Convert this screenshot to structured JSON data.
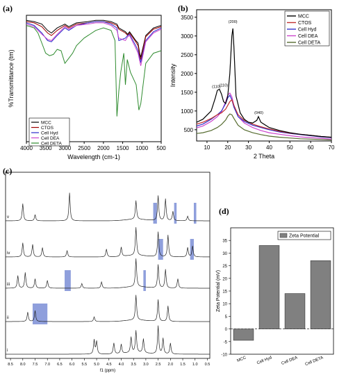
{
  "chart_data": [
    {
      "panel": "(a)",
      "type": "line",
      "xlabel": "Wavelength (cm-1)",
      "ylabel": "%Transmittance (tm)",
      "xlim": [
        4000,
        500
      ],
      "x_ticks": [
        4000,
        3500,
        3000,
        2500,
        2000,
        1500,
        1000,
        500
      ],
      "legend_position": "bottom-left",
      "series": [
        {
          "name": "MCC",
          "color": "#000000",
          "x": [
            4000,
            3800,
            3600,
            3450,
            3350,
            3200,
            3000,
            2900,
            2700,
            2400,
            2200,
            2000,
            1800,
            1650,
            1600,
            1430,
            1370,
            1320,
            1160,
            1100,
            1060,
            1030,
            900,
            700,
            500
          ],
          "y": [
            96,
            95,
            93,
            88,
            86,
            90,
            93,
            91,
            94,
            95,
            96,
            96,
            95,
            93,
            90,
            87,
            85,
            87,
            80,
            78,
            70,
            67,
            84,
            90,
            92
          ]
        },
        {
          "name": "CTOS",
          "color": "#a00000",
          "x": [
            4000,
            3800,
            3600,
            3450,
            3350,
            3200,
            3000,
            2900,
            2700,
            2400,
            2200,
            2000,
            1800,
            1650,
            1600,
            1430,
            1370,
            1320,
            1160,
            1100,
            1060,
            1030,
            900,
            700,
            500
          ],
          "y": [
            95,
            94,
            91,
            86,
            84,
            88,
            92,
            90,
            93,
            94,
            95,
            95,
            94,
            92,
            89,
            86,
            84,
            86,
            79,
            76,
            68,
            65,
            83,
            89,
            91
          ]
        },
        {
          "name": "Cell Hyd",
          "color": "#2a2acc",
          "x": [
            4000,
            3800,
            3600,
            3450,
            3350,
            3200,
            3000,
            2900,
            2700,
            2400,
            2200,
            2000,
            1800,
            1650,
            1600,
            1430,
            1370,
            1320,
            1160,
            1100,
            1060,
            1030,
            900,
            700,
            500
          ],
          "y": [
            94,
            92,
            86,
            80,
            79,
            84,
            90,
            88,
            92,
            94,
            95,
            95,
            93,
            90,
            80,
            82,
            84,
            85,
            76,
            72,
            66,
            63,
            80,
            87,
            90
          ]
        },
        {
          "name": "Cell DEA",
          "color": "#cc44cc",
          "x": [
            4000,
            3800,
            3600,
            3450,
            3350,
            3200,
            3000,
            2900,
            2700,
            2400,
            2200,
            2000,
            1800,
            1650,
            1600,
            1430,
            1370,
            1320,
            1160,
            1100,
            1060,
            1030,
            900,
            700,
            500
          ],
          "y": [
            93,
            91,
            85,
            81,
            80,
            85,
            91,
            89,
            92,
            93,
            94,
            94,
            92,
            88,
            82,
            80,
            83,
            84,
            74,
            70,
            64,
            60,
            79,
            86,
            89
          ]
        },
        {
          "name": "Cell DETA",
          "color": "#2e8b2e",
          "x": [
            4000,
            3800,
            3700,
            3600,
            3500,
            3400,
            3300,
            3200,
            3100,
            3000,
            2900,
            2800,
            2700,
            2500,
            2200,
            2000,
            1800,
            1700,
            1650,
            1600,
            1550,
            1470,
            1430,
            1380,
            1300,
            1150,
            1080,
            1030,
            950,
            900,
            700,
            500
          ],
          "y": [
            92,
            90,
            86,
            78,
            70,
            68,
            69,
            73,
            72,
            62,
            66,
            70,
            76,
            82,
            88,
            90,
            88,
            80,
            20,
            40,
            55,
            70,
            45,
            65,
            55,
            45,
            25,
            30,
            50,
            62,
            70,
            72
          ]
        }
      ]
    },
    {
      "panel": "(b)",
      "type": "line",
      "xlabel": "2 Theta",
      "ylabel": "Intensity",
      "xlim": [
        5,
        70
      ],
      "ylim": [
        200,
        3700
      ],
      "x_ticks": [
        10,
        20,
        30,
        40,
        50,
        60,
        70
      ],
      "y_ticks": [
        500,
        1000,
        1500,
        2000,
        2500,
        3000,
        3500
      ],
      "annotations": [
        {
          "text": "(110)",
          "x": 14.5,
          "y": 1620
        },
        {
          "text": "(110)",
          "x": 18,
          "y": 1650
        },
        {
          "text": "(200)",
          "x": 22.5,
          "y": 3350
        },
        {
          "text": "(040)",
          "x": 35,
          "y": 920
        }
      ],
      "legend_position": "top-right",
      "series": [
        {
          "name": "MCC",
          "color": "#000000",
          "x": [
            5,
            8,
            12,
            14,
            15,
            16,
            17,
            18,
            19,
            20,
            21,
            22,
            22.5,
            23,
            24,
            26,
            28,
            30,
            32,
            34,
            34.8,
            36,
            40,
            45,
            50,
            55,
            60,
            65,
            70
          ],
          "y": [
            700,
            780,
            1000,
            1350,
            1550,
            1580,
            1450,
            1250,
            1200,
            1400,
            2000,
            3000,
            3200,
            2700,
            1400,
            950,
            780,
            700,
            680,
            750,
            850,
            700,
            560,
            480,
            420,
            380,
            350,
            320,
            300
          ]
        },
        {
          "name": "CTOS",
          "color": "#c03030",
          "x": [
            5,
            8,
            12,
            15,
            17,
            19,
            20,
            21,
            22,
            23,
            25,
            28,
            32,
            36,
            40,
            45,
            50,
            55,
            60,
            65,
            70
          ],
          "y": [
            650,
            700,
            800,
            900,
            950,
            1050,
            1150,
            1250,
            1300,
            1150,
            900,
            750,
            650,
            580,
            520,
            460,
            410,
            380,
            350,
            320,
            300
          ]
        },
        {
          "name": "Cell Hyd",
          "color": "#3333cc",
          "x": [
            5,
            8,
            12,
            15,
            17,
            19,
            20,
            21,
            22,
            23,
            25,
            28,
            32,
            36,
            40,
            45,
            50,
            55,
            60,
            65,
            70
          ],
          "y": [
            600,
            650,
            780,
            900,
            1000,
            1200,
            1350,
            1420,
            1300,
            1100,
            850,
            720,
            620,
            560,
            500,
            440,
            400,
            370,
            340,
            310,
            290
          ]
        },
        {
          "name": "Cell DEA",
          "color": "#cc44cc",
          "x": [
            5,
            8,
            12,
            15,
            17,
            19,
            20,
            21,
            22,
            23,
            25,
            28,
            32,
            36,
            40,
            45,
            50,
            55,
            60,
            65,
            70
          ],
          "y": [
            550,
            600,
            720,
            850,
            980,
            1250,
            1420,
            1480,
            1380,
            1150,
            850,
            680,
            560,
            480,
            420,
            380,
            340,
            310,
            290,
            270,
            250
          ]
        },
        {
          "name": "Cell DETA",
          "color": "#556b2f",
          "x": [
            5,
            8,
            12,
            15,
            17,
            19,
            20,
            21,
            22,
            23,
            25,
            28,
            32,
            36,
            40,
            45,
            50,
            55,
            60,
            65,
            70
          ],
          "y": [
            400,
            420,
            480,
            560,
            640,
            760,
            860,
            920,
            900,
            800,
            620,
            500,
            420,
            370,
            330,
            300,
            280,
            260,
            250,
            240,
            230
          ]
        }
      ]
    },
    {
      "panel": "(c)",
      "type": "line",
      "xlabel": "f1 (ppm)",
      "xlim": [
        8.7,
        0.4
      ],
      "x_ticks": [
        8.5,
        8.0,
        7.5,
        7.0,
        6.5,
        6.0,
        5.5,
        5.0,
        4.5,
        4.0,
        3.5,
        3.0,
        2.5,
        2.0,
        1.5,
        1.0,
        0.5
      ],
      "x_tick_labels": [
        "8.5",
        "8.0",
        "7.5",
        "7.0",
        "6.5",
        "6.0",
        "5.5",
        "5.0",
        "4.5",
        "4.0",
        "3.5",
        "3.0",
        "2.5",
        "2.0",
        "1.5",
        "1.0",
        "0.5"
      ],
      "trace_labels": [
        "v",
        "iv",
        "iii",
        "ii",
        "i"
      ],
      "highlights": [
        {
          "trace": "v",
          "from": 2.7,
          "to": 2.55
        },
        {
          "trace": "v",
          "from": 1.85,
          "to": 1.75
        },
        {
          "trace": "v",
          "from": 1.05,
          "to": 0.95
        },
        {
          "trace": "iv",
          "from": 2.5,
          "to": 2.3
        },
        {
          "trace": "iv",
          "from": 1.2,
          "to": 1.05
        },
        {
          "trace": "iii",
          "from": 6.3,
          "to": 6.05
        },
        {
          "trace": "iii",
          "from": 3.1,
          "to": 3.0
        },
        {
          "trace": "ii",
          "from": 7.6,
          "to": 7.0
        }
      ],
      "series": [
        {
          "name": "v",
          "color": "#222222",
          "peaks": [
            {
              "x": 8.0,
              "h": 0.55
            },
            {
              "x": 7.5,
              "h": 0.2
            },
            {
              "x": 6.1,
              "h": 0.9
            },
            {
              "x": 3.4,
              "h": 0.6
            },
            {
              "x": 2.5,
              "h": 0.8
            },
            {
              "x": 2.2,
              "h": 0.7
            },
            {
              "x": 1.9,
              "h": 0.3
            },
            {
              "x": 1.3,
              "h": 0.15
            }
          ]
        },
        {
          "name": "iv",
          "color": "#222222",
          "peaks": [
            {
              "x": 8.0,
              "h": 0.45
            },
            {
              "x": 7.6,
              "h": 0.4
            },
            {
              "x": 7.2,
              "h": 0.3
            },
            {
              "x": 6.2,
              "h": 0.2
            },
            {
              "x": 4.6,
              "h": 0.25
            },
            {
              "x": 4.0,
              "h": 0.3
            },
            {
              "x": 3.4,
              "h": 0.9
            },
            {
              "x": 2.5,
              "h": 0.8
            },
            {
              "x": 2.1,
              "h": 0.7
            },
            {
              "x": 1.3,
              "h": 0.3
            },
            {
              "x": 1.1,
              "h": 0.35
            }
          ]
        },
        {
          "name": "iii",
          "color": "#222222",
          "peaks": [
            {
              "x": 8.2,
              "h": 0.4
            },
            {
              "x": 7.9,
              "h": 0.5
            },
            {
              "x": 7.5,
              "h": 0.3
            },
            {
              "x": 7.0,
              "h": 0.25
            },
            {
              "x": 5.6,
              "h": 0.15
            },
            {
              "x": 4.8,
              "h": 0.2
            },
            {
              "x": 3.4,
              "h": 0.9
            },
            {
              "x": 2.5,
              "h": 0.75
            },
            {
              "x": 2.2,
              "h": 0.6
            },
            {
              "x": 1.7,
              "h": 0.3
            }
          ]
        },
        {
          "name": "ii",
          "color": "#222222",
          "peaks": [
            {
              "x": 7.8,
              "h": 0.3
            },
            {
              "x": 7.5,
              "h": 0.35
            },
            {
              "x": 5.1,
              "h": 0.15
            },
            {
              "x": 3.4,
              "h": 0.8
            },
            {
              "x": 2.5,
              "h": 0.7
            },
            {
              "x": 2.1,
              "h": 0.5
            }
          ]
        },
        {
          "name": "i",
          "color": "#222222",
          "peaks": [
            {
              "x": 5.1,
              "h": 0.45
            },
            {
              "x": 5.0,
              "h": 0.4
            },
            {
              "x": 4.3,
              "h": 0.35
            },
            {
              "x": 4.0,
              "h": 0.3
            },
            {
              "x": 3.6,
              "h": 0.5
            },
            {
              "x": 3.4,
              "h": 0.7
            },
            {
              "x": 3.1,
              "h": 0.45
            },
            {
              "x": 2.5,
              "h": 0.9
            },
            {
              "x": 2.3,
              "h": 0.5
            },
            {
              "x": 2.0,
              "h": 0.35
            }
          ]
        }
      ]
    },
    {
      "panel": "(d)",
      "type": "bar",
      "ylabel": "Zeta Potential (mV)",
      "categories": [
        "MCC",
        "Cell Hyd",
        "Cell DEA",
        "Cell DETA"
      ],
      "series": [
        {
          "name": "Zeta Potential",
          "color": "#808080",
          "values": [
            -4.5,
            33,
            14,
            27
          ]
        }
      ],
      "ylim": [
        -10,
        40
      ],
      "y_ticks": [
        -10,
        -5,
        0,
        5,
        10,
        15,
        20,
        25,
        30,
        35
      ],
      "legend_position": "top-right"
    }
  ]
}
